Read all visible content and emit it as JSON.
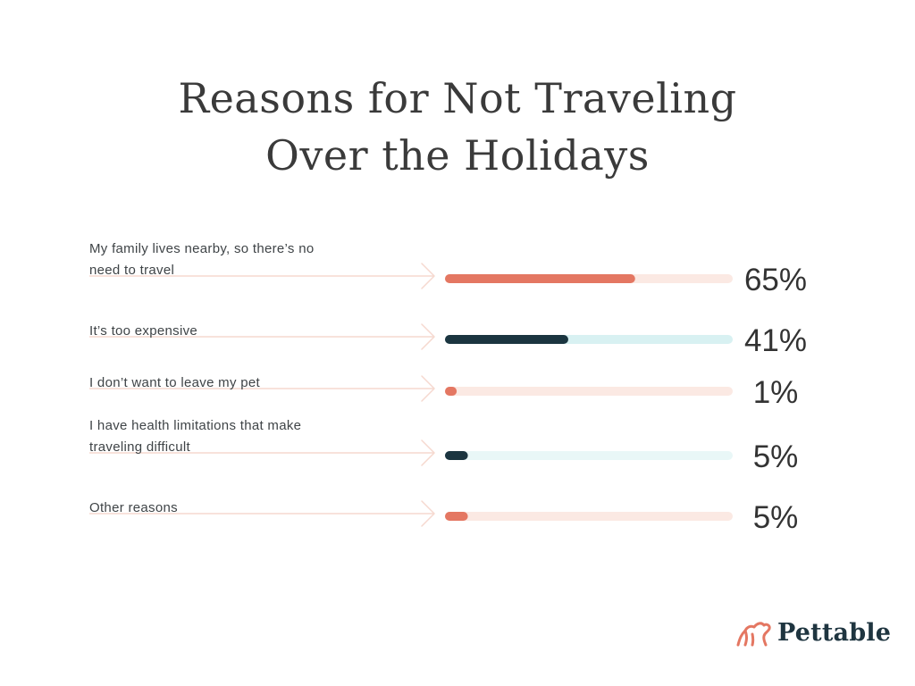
{
  "colors": {
    "coral": "#e47762",
    "navy": "#1b3540",
    "coral_track": "#fbe9e3",
    "teal_track": "#d8f1f2",
    "teal_track_light": "#e9f7f7"
  },
  "chart_data": {
    "type": "bar",
    "title_lines": [
      "Reasons for Not Traveling",
      "Over the Holidays"
    ],
    "unit": "%",
    "ylim": [
      0,
      100
    ],
    "categories": [
      [
        "My family lives nearby, so there’s no",
        "need to travel"
      ],
      [
        "It’s too expensive"
      ],
      [
        "I don’t want to leave my pet"
      ],
      [
        "I have health limitations that make",
        "traveling difficult"
      ],
      [
        "Other reasons"
      ]
    ],
    "values": [
      65,
      41,
      1,
      5,
      5
    ],
    "value_labels": [
      "65%",
      "41%",
      "1%",
      "5%",
      "5%"
    ],
    "bar_colors": [
      "#e47762",
      "#1b3540",
      "#e47762",
      "#1b3540",
      "#e47762"
    ],
    "track_colors": [
      "#fbe9e3",
      "#d8f1f2",
      "#fbe9e3",
      "#e9f7f7",
      "#fbe9e3"
    ]
  },
  "logo": {
    "text": "Pettable",
    "icon": "dog-silhouette-icon"
  }
}
